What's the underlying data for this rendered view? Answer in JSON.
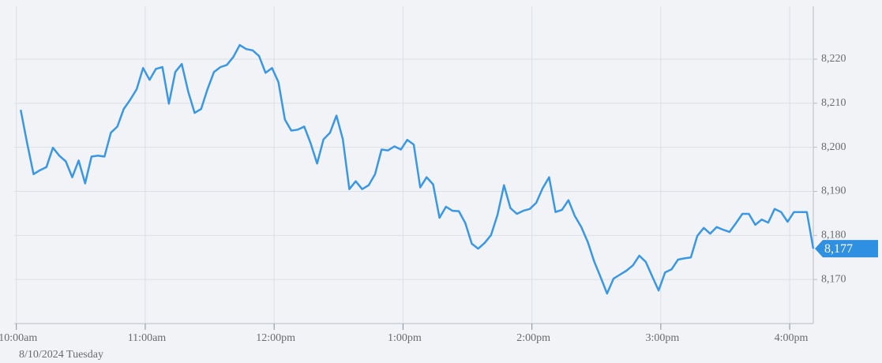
{
  "chart_data": {
    "type": "line",
    "subtitle": "8/10/2024 Tuesday",
    "color": "#3a97e6",
    "x": [
      "10:02",
      "10:05",
      "10:08",
      "10:11",
      "10:14",
      "10:17",
      "10:20",
      "10:23",
      "10:26",
      "10:29",
      "10:32",
      "10:35",
      "10:38",
      "10:41",
      "10:44",
      "10:47",
      "10:50",
      "10:53",
      "10:56",
      "10:59",
      "11:02",
      "11:05",
      "11:08",
      "11:11",
      "11:14",
      "11:17",
      "11:20",
      "11:23",
      "11:26",
      "11:29",
      "11:32",
      "11:35",
      "11:38",
      "11:41",
      "11:44",
      "11:47",
      "11:50",
      "11:53",
      "11:56",
      "11:59",
      "12:02",
      "12:05",
      "12:08",
      "12:11",
      "12:14",
      "12:17",
      "12:20",
      "12:23",
      "12:26",
      "12:29",
      "12:32",
      "12:35",
      "12:38",
      "12:41",
      "12:44",
      "12:47",
      "12:50",
      "12:53",
      "12:56",
      "12:59",
      "13:02",
      "13:05",
      "13:08",
      "13:11",
      "13:14",
      "13:17",
      "13:20",
      "13:23",
      "13:26",
      "13:29",
      "13:32",
      "13:35",
      "13:38",
      "13:41",
      "13:44",
      "13:47",
      "13:50",
      "13:53",
      "13:56",
      "13:59",
      "14:02",
      "14:05",
      "14:08",
      "14:11",
      "14:14",
      "14:17",
      "14:20",
      "14:23",
      "14:26",
      "14:29",
      "14:32",
      "14:35",
      "14:38",
      "14:41",
      "14:44",
      "14:47",
      "14:50",
      "14:53",
      "14:56",
      "14:59",
      "15:02",
      "15:05",
      "15:08",
      "15:11",
      "15:14",
      "15:17",
      "15:20",
      "15:23",
      "15:26",
      "15:29",
      "15:32",
      "15:35",
      "15:38",
      "15:41",
      "15:44",
      "15:47",
      "15:50",
      "15:53",
      "15:56",
      "15:59",
      "16:02",
      "16:05",
      "16:08",
      "16:11"
    ],
    "values": [
      8208.5,
      8201.0,
      8193.9,
      8194.8,
      8195.5,
      8199.9,
      8198.1,
      8196.8,
      8193.2,
      8197.0,
      8191.8,
      8197.9,
      8198.1,
      8197.9,
      8203.3,
      8204.7,
      8208.7,
      8210.8,
      8213.2,
      8218.0,
      8215.3,
      8217.8,
      8218.2,
      8209.9,
      8217.1,
      8218.9,
      8212.6,
      8207.8,
      8208.7,
      8213.2,
      8217.1,
      8218.2,
      8218.7,
      8220.5,
      8223.2,
      8222.3,
      8222.0,
      8220.7,
      8216.9,
      8218.0,
      8214.8,
      8206.3,
      8203.8,
      8204.0,
      8204.7,
      8200.9,
      8196.3,
      8201.8,
      8203.3,
      8207.2,
      8201.8,
      8190.5,
      8192.3,
      8190.5,
      8191.4,
      8193.9,
      8199.5,
      8199.3,
      8200.2,
      8199.5,
      8201.7,
      8200.6,
      8190.9,
      8193.2,
      8191.6,
      8184.0,
      8186.5,
      8185.6,
      8185.5,
      8182.8,
      8178.1,
      8177.0,
      8178.3,
      8180.1,
      8184.7,
      8191.4,
      8186.2,
      8184.9,
      8185.6,
      8186.0,
      8187.4,
      8190.7,
      8193.2,
      8185.3,
      8185.8,
      8188.0,
      8184.4,
      8181.9,
      8178.5,
      8174.1,
      8170.5,
      8166.8,
      8170.2,
      8171.1,
      8172.0,
      8173.2,
      8175.4,
      8174.0,
      8170.7,
      8167.5,
      8171.6,
      8172.3,
      8174.5,
      8174.8,
      8175.0,
      8179.9,
      8181.7,
      8180.4,
      8181.9,
      8181.3,
      8180.8,
      8182.8,
      8184.9,
      8184.9,
      8182.4,
      8183.6,
      8182.9,
      8186.0,
      8185.3,
      8183.1,
      8185.3,
      8185.3,
      8185.3,
      8177.0
    ],
    "xlim": [
      "09:59",
      "16:11"
    ],
    "xticks": [
      {
        "value": "10:00",
        "label": "10:00am"
      },
      {
        "value": "11:00",
        "label": "11:00am"
      },
      {
        "value": "12:00",
        "label": "12:00pm"
      },
      {
        "value": "13:00",
        "label": "1:00pm"
      },
      {
        "value": "14:00",
        "label": "2:00pm"
      },
      {
        "value": "15:00",
        "label": "3:00pm"
      },
      {
        "value": "16:00",
        "label": "4:00pm"
      }
    ],
    "ylim": [
      8160,
      8232
    ],
    "yticks": [
      {
        "value": 8170,
        "label": "8,170"
      },
      {
        "value": 8180,
        "label": "8,180"
      },
      {
        "value": 8190,
        "label": "8,190"
      },
      {
        "value": 8200,
        "label": "8,200"
      },
      {
        "value": 8210,
        "label": "8,210"
      },
      {
        "value": 8220,
        "label": "8,220"
      }
    ],
    "current_value": {
      "value": 8177,
      "label": "8,177"
    },
    "grid": true
  }
}
